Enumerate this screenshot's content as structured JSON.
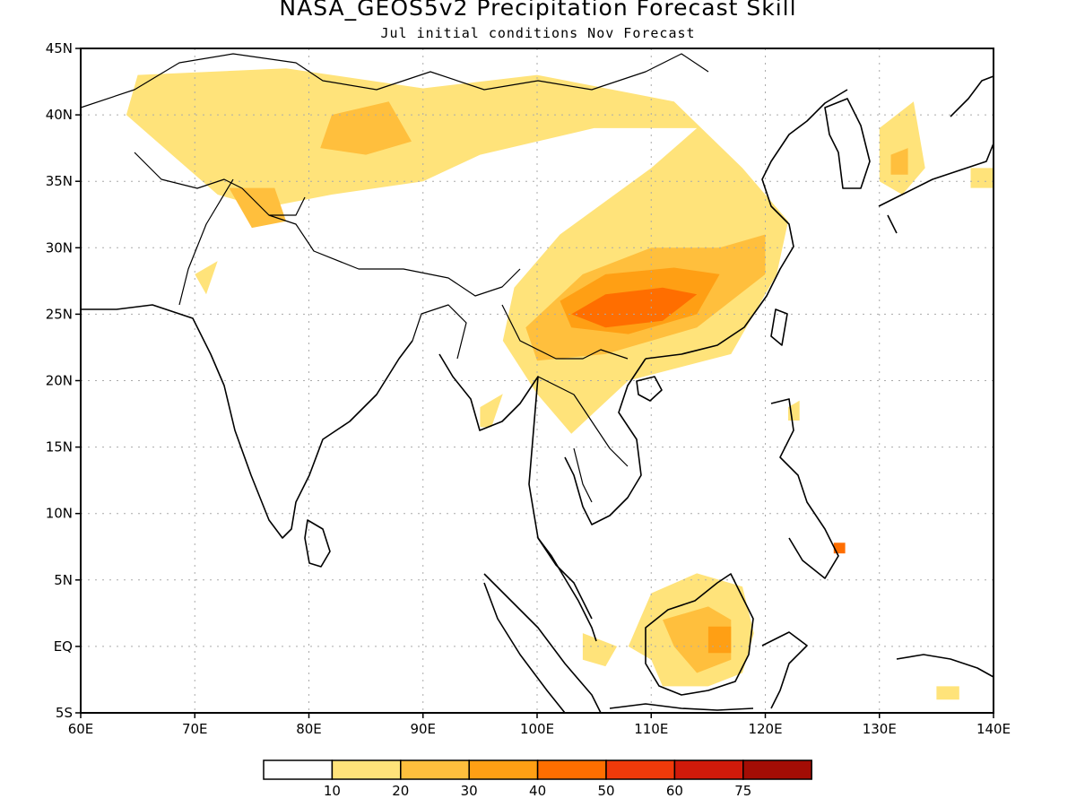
{
  "title": "NASA_GEOS5v2 Precipitation Forecast Skill",
  "subtitle": "Jul initial conditions   Nov Forecast",
  "map": {
    "lon_range": [
      60,
      140
    ],
    "lat_range": [
      -5,
      45
    ],
    "lat_ticks": [
      {
        "value": 45,
        "label": "45N"
      },
      {
        "value": 40,
        "label": "40N"
      },
      {
        "value": 35,
        "label": "35N"
      },
      {
        "value": 30,
        "label": "30N"
      },
      {
        "value": 25,
        "label": "25N"
      },
      {
        "value": 20,
        "label": "20N"
      },
      {
        "value": 15,
        "label": "15N"
      },
      {
        "value": 10,
        "label": "10N"
      },
      {
        "value": 5,
        "label": "5N"
      },
      {
        "value": 0,
        "label": "EQ"
      },
      {
        "value": -5,
        "label": "5S"
      }
    ],
    "lon_ticks": [
      {
        "value": 60,
        "label": "60E"
      },
      {
        "value": 70,
        "label": "70E"
      },
      {
        "value": 80,
        "label": "80E"
      },
      {
        "value": 90,
        "label": "90E"
      },
      {
        "value": 100,
        "label": "100E"
      },
      {
        "value": 110,
        "label": "110E"
      },
      {
        "value": 120,
        "label": "120E"
      },
      {
        "value": 130,
        "label": "130E"
      },
      {
        "value": 140,
        "label": "140E"
      }
    ],
    "grid": true,
    "coastline_color": "#000000"
  },
  "colorbar": {
    "labels": [
      "10",
      "20",
      "30",
      "40",
      "50",
      "60",
      "75"
    ],
    "colors": [
      "#ffffff",
      "#ffe37a",
      "#ffbf3d",
      "#ff9f14",
      "#ff6e00",
      "#f03a0a",
      "#d11a0a",
      "#a30d05"
    ]
  },
  "skill_regions": [
    {
      "level": 1,
      "points": [
        [
          65,
          43
        ],
        [
          78,
          43.5
        ],
        [
          90,
          42
        ],
        [
          100,
          43
        ],
        [
          112,
          41
        ],
        [
          118,
          36
        ],
        [
          122,
          32
        ],
        [
          121,
          28
        ],
        [
          117,
          22
        ],
        [
          108,
          20
        ],
        [
          103,
          16
        ],
        [
          100,
          19
        ],
        [
          97,
          23
        ],
        [
          98,
          27
        ],
        [
          102,
          31
        ],
        [
          110,
          36
        ],
        [
          114,
          39
        ],
        [
          105,
          39
        ],
        [
          95,
          37
        ],
        [
          90,
          35
        ],
        [
          82,
          34
        ],
        [
          76,
          33
        ],
        [
          72,
          34
        ],
        [
          68,
          37
        ],
        [
          64,
          40
        ]
      ]
    },
    {
      "level": 2,
      "points": [
        [
          82,
          40
        ],
        [
          87,
          41
        ],
        [
          89,
          38
        ],
        [
          85,
          37
        ],
        [
          81,
          37.5
        ]
      ]
    },
    {
      "level": 2,
      "points": [
        [
          73,
          34.5
        ],
        [
          77,
          34.5
        ],
        [
          78,
          32
        ],
        [
          75,
          31.5
        ]
      ]
    },
    {
      "level": 2,
      "points": [
        [
          99,
          24
        ],
        [
          104,
          28
        ],
        [
          110,
          30
        ],
        [
          116,
          30
        ],
        [
          120,
          31
        ],
        [
          120,
          28
        ],
        [
          114,
          24
        ],
        [
          106,
          22
        ],
        [
          100,
          21.5
        ]
      ]
    },
    {
      "level": 3,
      "points": [
        [
          102,
          26
        ],
        [
          106,
          28
        ],
        [
          112,
          28.5
        ],
        [
          116,
          28
        ],
        [
          114,
          25
        ],
        [
          108,
          23.5
        ],
        [
          103,
          24
        ]
      ]
    },
    {
      "level": 4,
      "points": [
        [
          103,
          25
        ],
        [
          106,
          26.5
        ],
        [
          111,
          27
        ],
        [
          114,
          26.5
        ],
        [
          111,
          24.5
        ],
        [
          106,
          24
        ]
      ]
    },
    {
      "level": 1,
      "points": [
        [
          130,
          39
        ],
        [
          133,
          41
        ],
        [
          134,
          36
        ],
        [
          132,
          34
        ],
        [
          130,
          35
        ]
      ]
    },
    {
      "level": 2,
      "points": [
        [
          131,
          37
        ],
        [
          132.5,
          37.5
        ],
        [
          132.5,
          35.5
        ],
        [
          131,
          35.5
        ]
      ]
    },
    {
      "level": 1,
      "points": [
        [
          110,
          4
        ],
        [
          114,
          5.5
        ],
        [
          118,
          4.5
        ],
        [
          119,
          1
        ],
        [
          118,
          -2
        ],
        [
          115,
          -3
        ],
        [
          111,
          -3
        ],
        [
          110,
          -1
        ],
        [
          108,
          0
        ],
        [
          109,
          2
        ]
      ]
    },
    {
      "level": 2,
      "points": [
        [
          111,
          2
        ],
        [
          115,
          3
        ],
        [
          117,
          2
        ],
        [
          117,
          -1
        ],
        [
          114,
          -2
        ],
        [
          112,
          0
        ]
      ]
    },
    {
      "level": 3,
      "points": [
        [
          115,
          1.5
        ],
        [
          117,
          1.5
        ],
        [
          117,
          -0.5
        ],
        [
          115,
          -0.5
        ]
      ]
    },
    {
      "level": 4,
      "points": [
        [
          126,
          7.8
        ],
        [
          127,
          7.8
        ],
        [
          127,
          7
        ],
        [
          126,
          7
        ]
      ]
    },
    {
      "level": 1,
      "points": [
        [
          104,
          1
        ],
        [
          107,
          0
        ],
        [
          106,
          -1.5
        ],
        [
          104,
          -1
        ]
      ]
    },
    {
      "level": 1,
      "points": [
        [
          95,
          18
        ],
        [
          97,
          19
        ],
        [
          96,
          16.5
        ],
        [
          95,
          16.5
        ]
      ]
    },
    {
      "level": 1,
      "points": [
        [
          122,
          18
        ],
        [
          123,
          18.5
        ],
        [
          123,
          17
        ],
        [
          122,
          17
        ]
      ]
    },
    {
      "level": 1,
      "points": [
        [
          70,
          28
        ],
        [
          72,
          29
        ],
        [
          71,
          26.5
        ]
      ]
    },
    {
      "level": 1,
      "points": [
        [
          138,
          36
        ],
        [
          140,
          36
        ],
        [
          140,
          34.5
        ],
        [
          138,
          34.5
        ]
      ]
    },
    {
      "level": 1,
      "points": [
        [
          135,
          -3
        ],
        [
          137,
          -3
        ],
        [
          137,
          -4
        ],
        [
          135,
          -4
        ]
      ]
    },
    {
      "level": 1,
      "points": [
        [
          95,
          18
        ],
        [
          96,
          19
        ]
      ]
    }
  ]
}
